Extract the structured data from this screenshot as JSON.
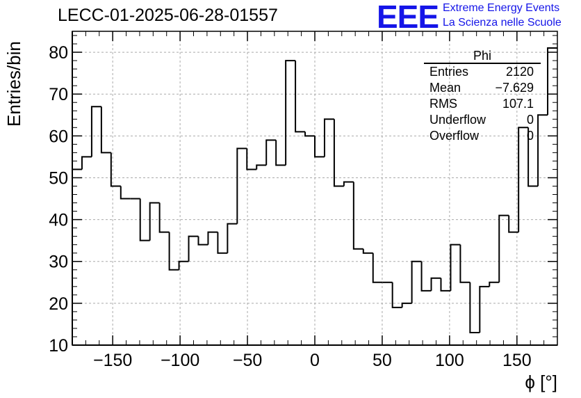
{
  "title": "LECC-01-2025-06-28-01557",
  "logo": {
    "mark": "EEE",
    "line1": "Extreme Energy Events",
    "line2": "La Scienza nelle Scuole",
    "color": "#1515e8"
  },
  "stats": {
    "name": "Phi",
    "rows": [
      {
        "label": "Entries",
        "value": "2120"
      },
      {
        "label": "Mean",
        "value": "−7.629"
      },
      {
        "label": "RMS",
        "value": "107.1"
      },
      {
        "label": "Underflow",
        "value": "0"
      },
      {
        "label": "Overflow",
        "value": "0"
      }
    ]
  },
  "chart_data": {
    "type": "histogram",
    "title": "LECC-01-2025-06-28-01557",
    "xlabel": "ϕ [°]",
    "ylabel": "Entries/bin",
    "xlim": [
      -180,
      180
    ],
    "ylim": [
      10,
      85
    ],
    "bin_width": 7.2,
    "x_ticks": [
      -150,
      -100,
      -50,
      0,
      50,
      100,
      150
    ],
    "x_tick_labels": [
      "−150",
      "−100",
      "−50",
      "0",
      "50",
      "100",
      "150"
    ],
    "y_ticks": [
      10,
      20,
      30,
      40,
      50,
      60,
      70,
      80
    ],
    "y_tick_labels": [
      "10",
      "20",
      "30",
      "40",
      "50",
      "60",
      "70",
      "80"
    ],
    "grid": true,
    "line_color": "#000000",
    "bin_low_edges": [
      -180,
      -172.8,
      -165.6,
      -158.4,
      -151.2,
      -144,
      -136.8,
      -129.6,
      -122.4,
      -115.2,
      -108,
      -100.8,
      -93.6,
      -86.4,
      -79.2,
      -72,
      -64.8,
      -57.6,
      -50.4,
      -43.2,
      -36,
      -28.8,
      -21.6,
      -14.4,
      -7.2,
      0,
      7.2,
      14.4,
      21.6,
      28.8,
      36,
      43.2,
      50.4,
      57.6,
      64.8,
      72,
      79.2,
      86.4,
      93.6,
      100.8,
      108,
      115.2,
      122.4,
      129.6,
      136.8,
      144,
      151.2,
      158.4,
      165.6,
      172.8
    ],
    "values": [
      52,
      55,
      67,
      56,
      48,
      45,
      45,
      35,
      44,
      37,
      28,
      30,
      36,
      34,
      37,
      32,
      39,
      57,
      52,
      53,
      59,
      53,
      78,
      61,
      60,
      55,
      64,
      48,
      49,
      33,
      32,
      25,
      25,
      19,
      20,
      30,
      23,
      26,
      23,
      34,
      25,
      13,
      24,
      25,
      41,
      37,
      62,
      48,
      65,
      81
    ]
  }
}
